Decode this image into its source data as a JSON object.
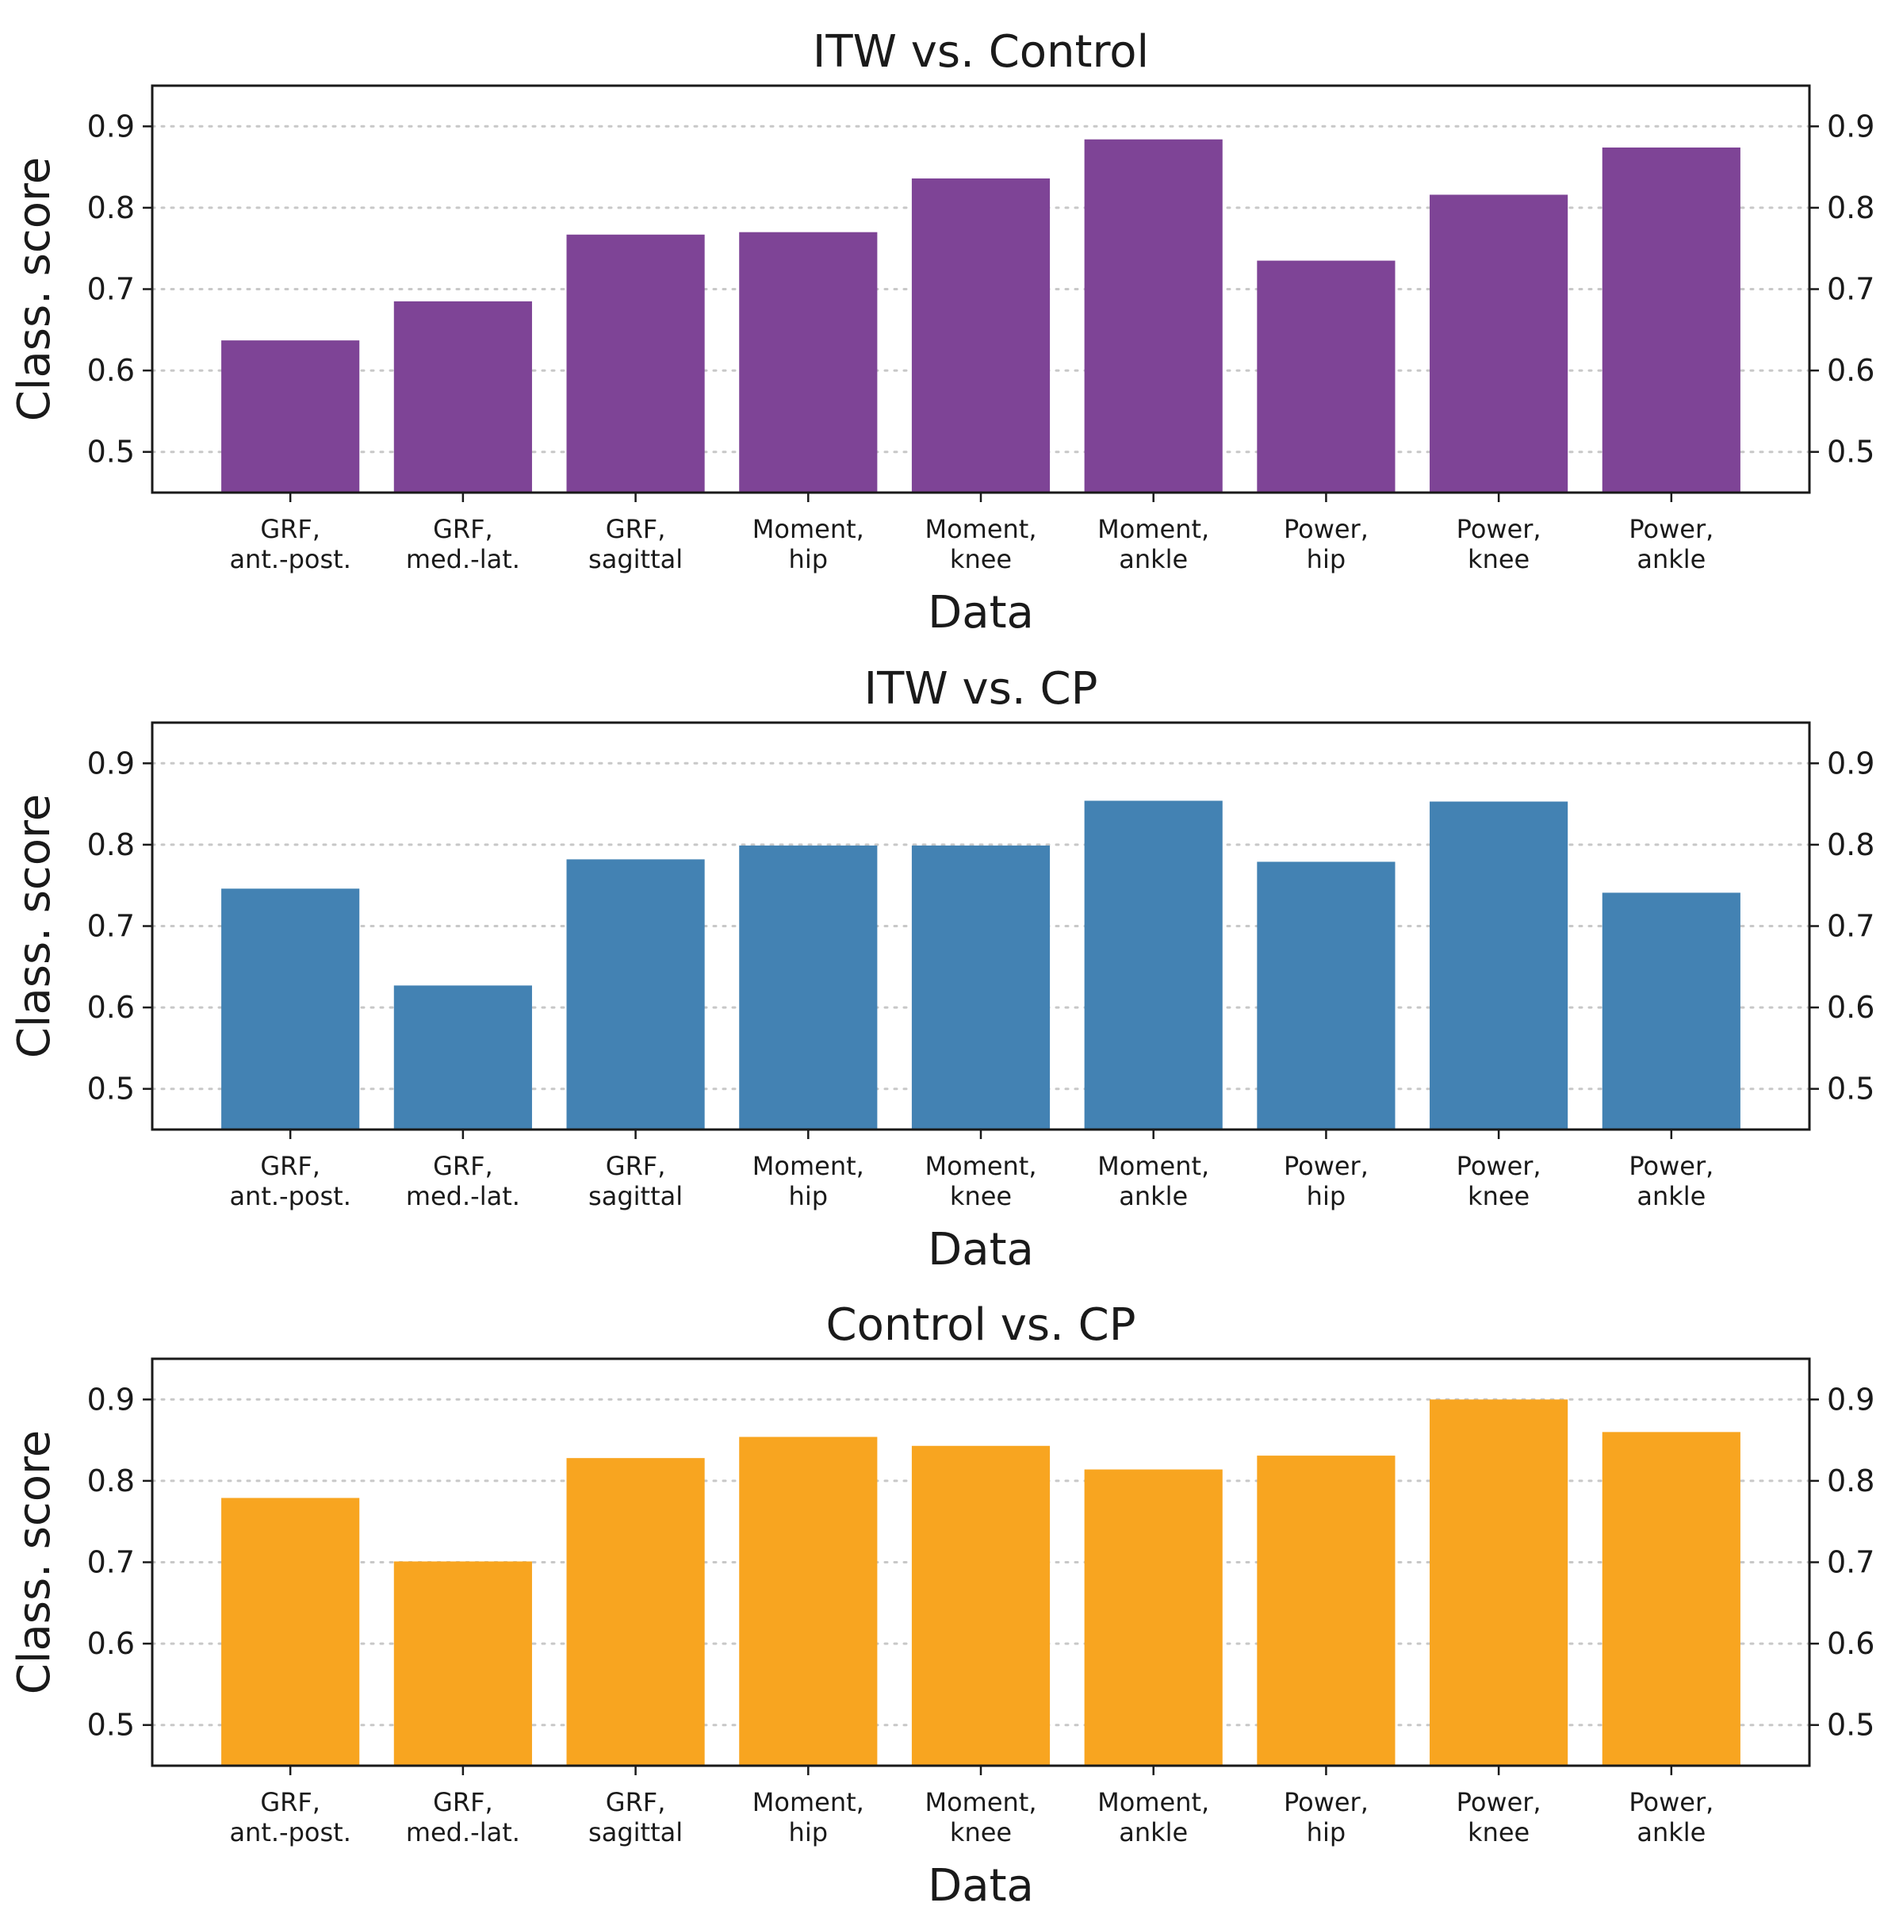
{
  "chart_data": [
    {
      "type": "bar",
      "title": "ITW vs. Control",
      "xlabel": "Data",
      "ylabel": "Class. score",
      "ylim": [
        0.45,
        0.95
      ],
      "yticks": [
        "0.5",
        "0.6",
        "0.7",
        "0.8",
        "0.9"
      ],
      "grid": "horizontal dotted",
      "color": "#7e4496",
      "categories": [
        [
          "GRF,",
          "ant.-post."
        ],
        [
          "GRF,",
          "med.-lat."
        ],
        [
          "GRF,",
          "sagittal"
        ],
        [
          "Moment,",
          "hip"
        ],
        [
          "Moment,",
          "knee"
        ],
        [
          "Moment,",
          "ankle"
        ],
        [
          "Power,",
          "hip"
        ],
        [
          "Power,",
          "knee"
        ],
        [
          "Power,",
          "ankle"
        ]
      ],
      "values": [
        0.637,
        0.685,
        0.767,
        0.77,
        0.836,
        0.884,
        0.735,
        0.816,
        0.874
      ]
    },
    {
      "type": "bar",
      "title": "ITW vs. CP",
      "xlabel": "Data",
      "ylabel": "Class. score",
      "ylim": [
        0.45,
        0.95
      ],
      "yticks": [
        "0.5",
        "0.6",
        "0.7",
        "0.8",
        "0.9"
      ],
      "grid": "horizontal dotted",
      "color": "#4382b3",
      "categories": [
        [
          "GRF,",
          "ant.-post."
        ],
        [
          "GRF,",
          "med.-lat."
        ],
        [
          "GRF,",
          "sagittal"
        ],
        [
          "Moment,",
          "hip"
        ],
        [
          "Moment,",
          "knee"
        ],
        [
          "Moment,",
          "ankle"
        ],
        [
          "Power,",
          "hip"
        ],
        [
          "Power,",
          "knee"
        ],
        [
          "Power,",
          "ankle"
        ]
      ],
      "values": [
        0.746,
        0.627,
        0.782,
        0.799,
        0.799,
        0.854,
        0.779,
        0.853,
        0.741
      ]
    },
    {
      "type": "bar",
      "title": "Control vs. CP",
      "xlabel": "Data",
      "ylabel": "Class. score",
      "ylim": [
        0.45,
        0.95
      ],
      "yticks": [
        "0.5",
        "0.6",
        "0.7",
        "0.8",
        "0.9"
      ],
      "grid": "horizontal dotted",
      "color": "#f8a520",
      "categories": [
        [
          "GRF,",
          "ant.-post."
        ],
        [
          "GRF,",
          "med.-lat."
        ],
        [
          "GRF,",
          "sagittal"
        ],
        [
          "Moment,",
          "hip"
        ],
        [
          "Moment,",
          "knee"
        ],
        [
          "Moment,",
          "ankle"
        ],
        [
          "Power,",
          "hip"
        ],
        [
          "Power,",
          "knee"
        ],
        [
          "Power,",
          "ankle"
        ]
      ],
      "values": [
        0.779,
        0.701,
        0.828,
        0.854,
        0.843,
        0.814,
        0.831,
        0.9,
        0.86
      ]
    }
  ]
}
